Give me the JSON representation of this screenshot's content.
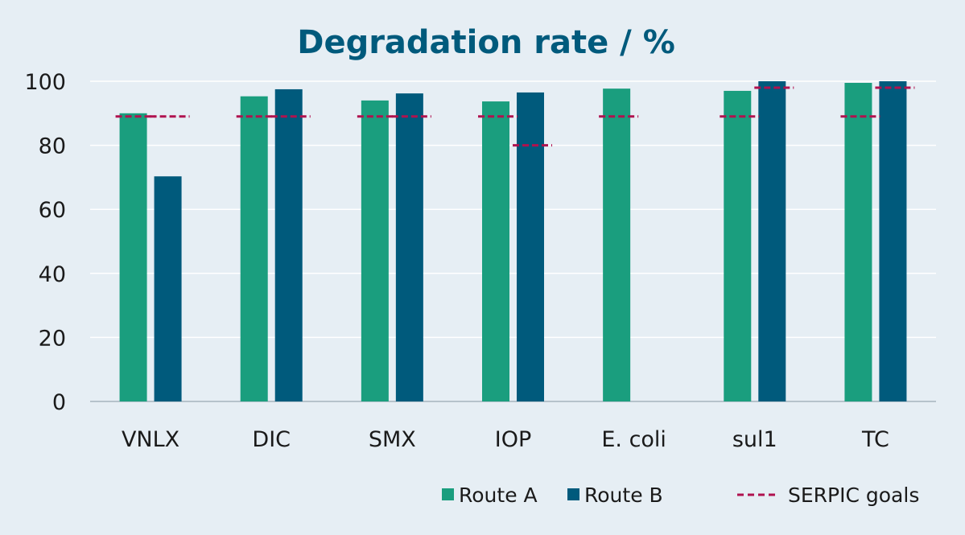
{
  "colors": {
    "background": "#e6eef4",
    "route_a": "#1a9e7e",
    "route_b": "#005a7c",
    "goal": "#b0124f",
    "title": "#005a7c",
    "grid": "#ffffff",
    "axis": "#a6b4bd"
  },
  "chart_data": {
    "type": "bar",
    "title": "Degradation rate / %",
    "xlabel": "",
    "ylabel": "",
    "ylim": [
      0,
      100
    ],
    "yticks": [
      0,
      20,
      40,
      60,
      80,
      100
    ],
    "grid": true,
    "legend_position": "bottom-right",
    "categories": [
      "VNLX",
      "DIC",
      "SMX",
      "IOP",
      "E. coli",
      "sul1",
      "TC"
    ],
    "series": [
      {
        "name": "Route A",
        "values": [
          90,
          95.3,
          94,
          93.7,
          97.7,
          97,
          99.5
        ]
      },
      {
        "name": "Route B",
        "values": [
          70.3,
          97.5,
          96.2,
          96.5,
          null,
          100,
          100
        ]
      }
    ],
    "goals": {
      "name": "SERPIC goals",
      "route_a": [
        89,
        89,
        89,
        89,
        89,
        89,
        89
      ],
      "route_b": [
        89,
        89,
        89,
        80,
        null,
        98,
        98
      ]
    }
  },
  "legend": {
    "route_a": "Route A",
    "route_b": "Route B",
    "goals": "SERPIC goals"
  }
}
